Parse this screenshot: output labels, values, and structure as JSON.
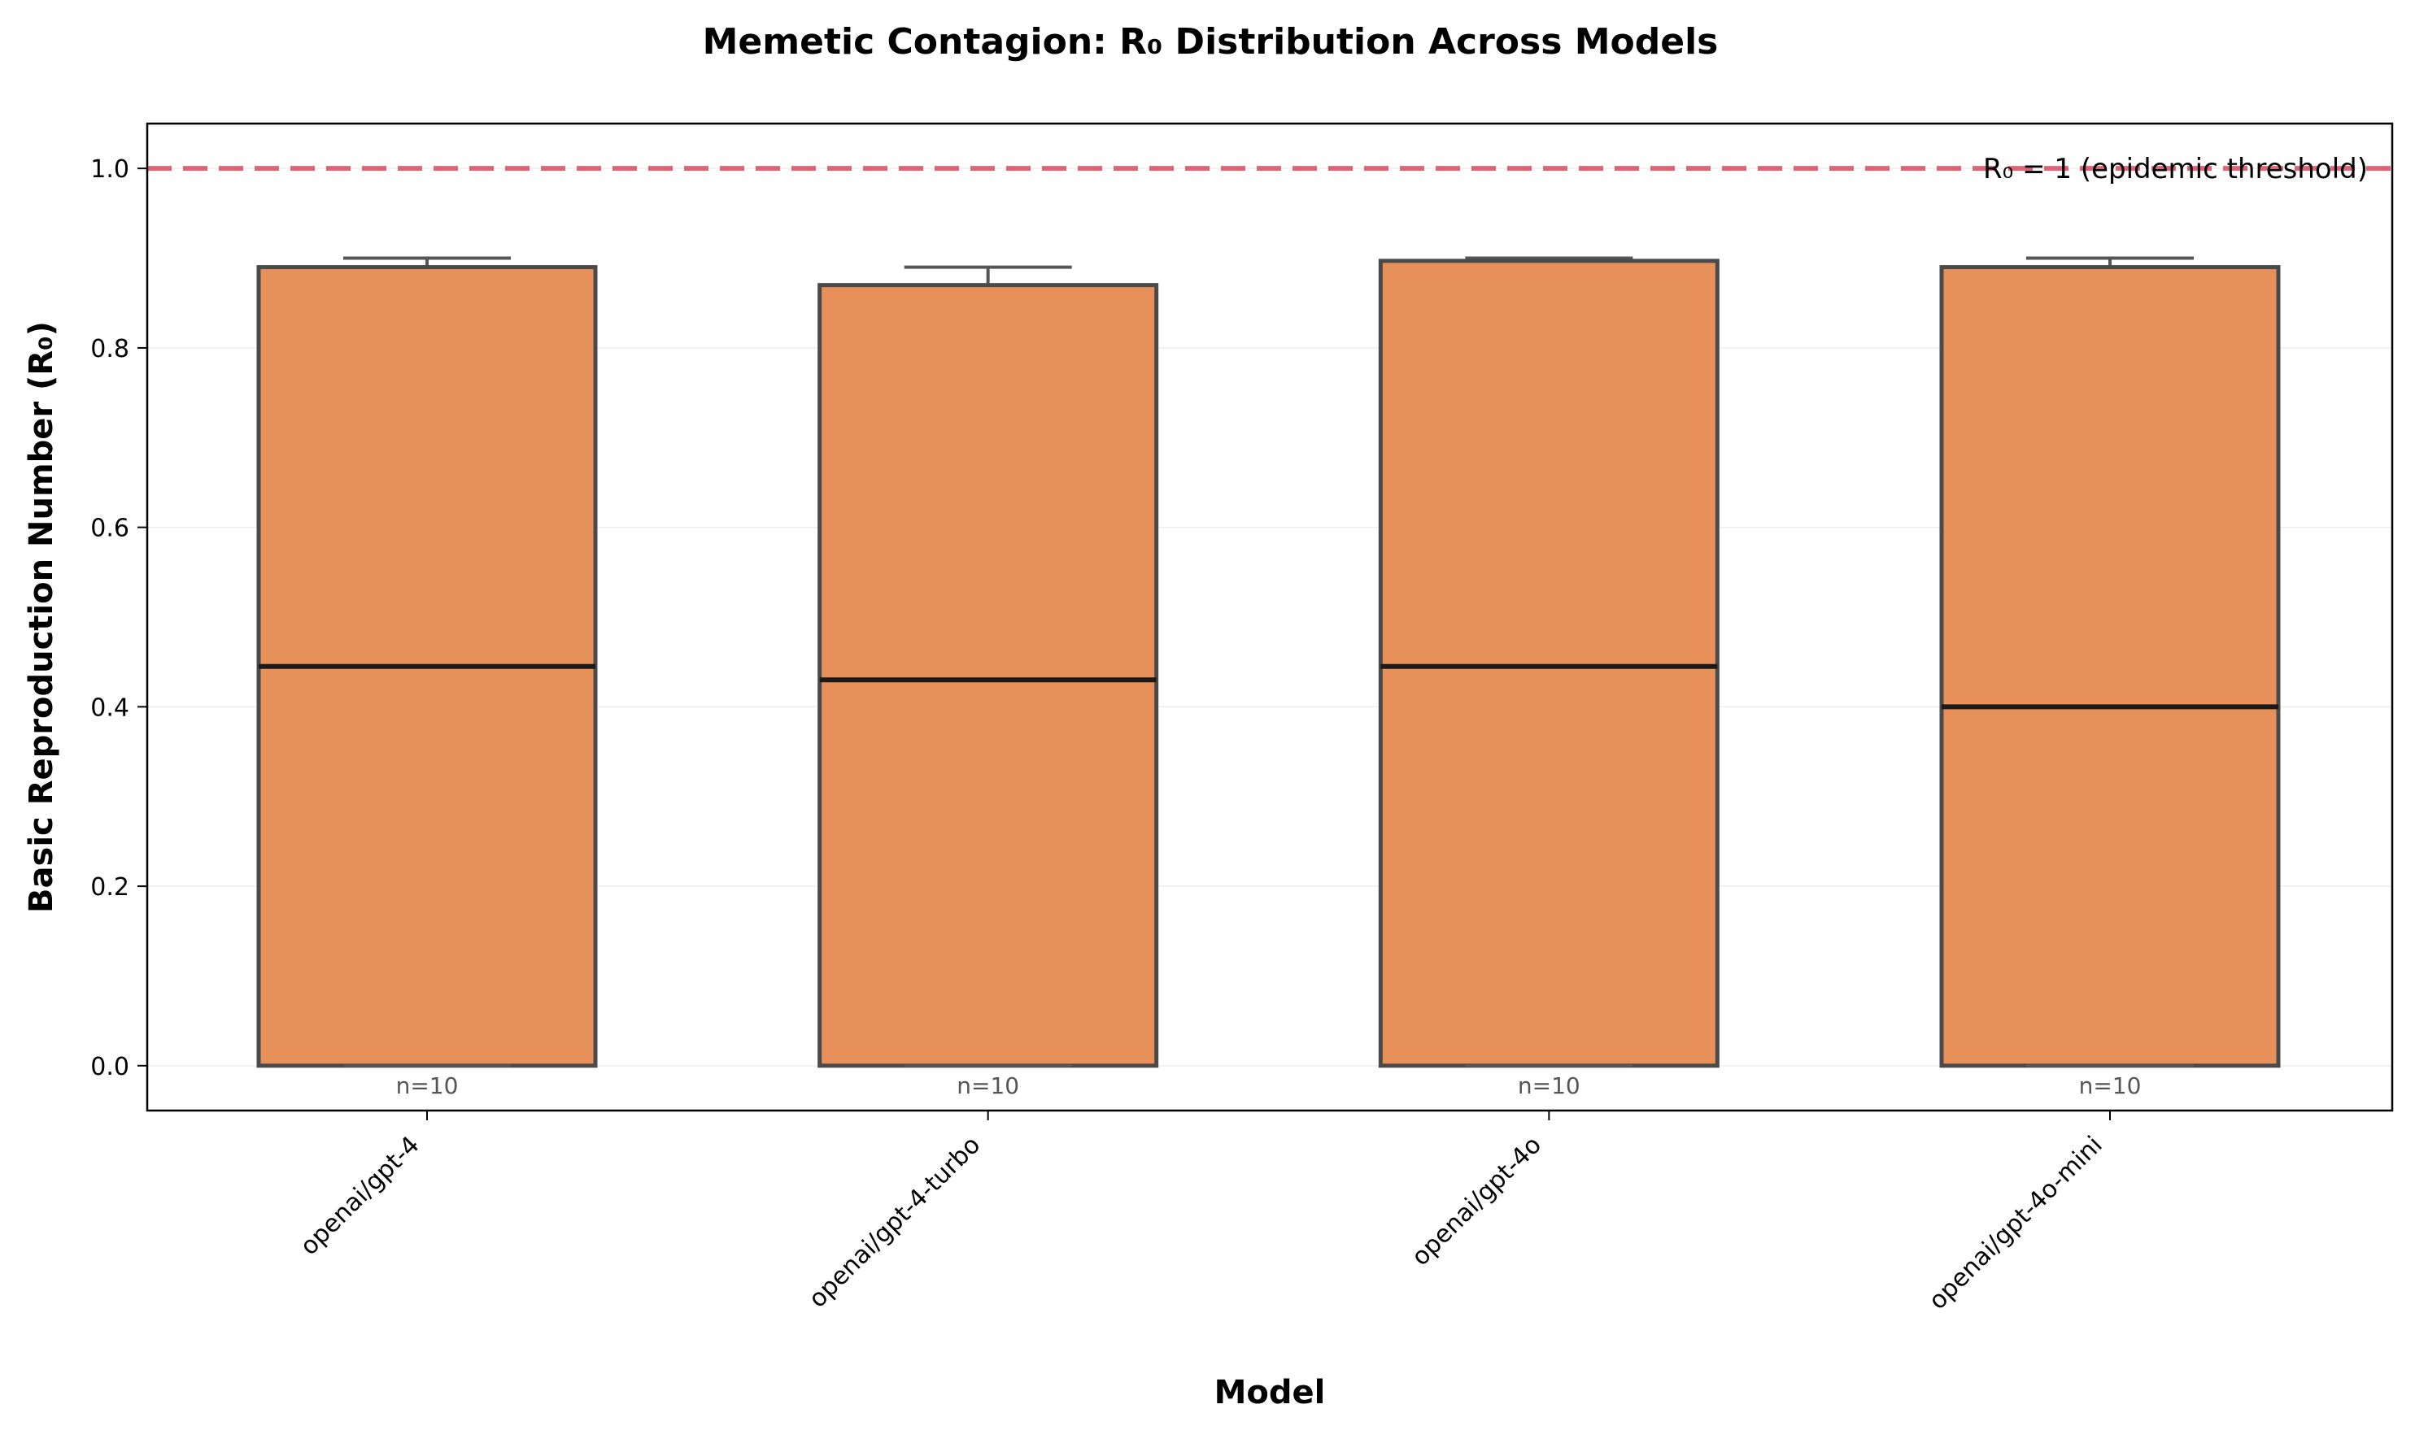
{
  "chart_data": {
    "type": "box",
    "title": "Memetic Contagion: R₀ Distribution Across Models",
    "xlabel": "Model",
    "ylabel": "Basic Reproduction Number (R₀)",
    "ylim": [
      -0.05,
      1.05
    ],
    "yticks": [
      0.0,
      0.2,
      0.4,
      0.6,
      0.8,
      1.0
    ],
    "ytick_labels": [
      "0.0",
      "0.2",
      "0.4",
      "0.6",
      "0.8",
      "1.0"
    ],
    "grid": true,
    "categories": [
      "openai/gpt-4",
      "openai/gpt-4-turbo",
      "openai/gpt-4o",
      "openai/gpt-4o-mini"
    ],
    "boxes": [
      {
        "category": "openai/gpt-4",
        "whisker_low": 0.0,
        "q1": 0.0,
        "median": 0.445,
        "q3": 0.89,
        "whisker_high": 0.9,
        "n_label": "n=10"
      },
      {
        "category": "openai/gpt-4-turbo",
        "whisker_low": 0.0,
        "q1": 0.0,
        "median": 0.43,
        "q3": 0.87,
        "whisker_high": 0.89,
        "n_label": "n=10"
      },
      {
        "category": "openai/gpt-4o",
        "whisker_low": 0.0,
        "q1": 0.0,
        "median": 0.445,
        "q3": 0.897,
        "whisker_high": 0.9,
        "n_label": "n=10"
      },
      {
        "category": "openai/gpt-4o-mini",
        "whisker_low": 0.0,
        "q1": 0.0,
        "median": 0.4,
        "q3": 0.89,
        "whisker_high": 0.9,
        "n_label": "n=10"
      }
    ],
    "reference_line": {
      "y": 1.0,
      "label": "R₀ = 1 (epidemic threshold)",
      "style": "dashed"
    },
    "legend_placement": "top-right",
    "colors": {
      "box_fill": "#e8905a",
      "box_edge": "#4a4a4a",
      "median": "#1a1a1a",
      "whisker": "#555555",
      "reference_line": "#d0364f",
      "n_label": "#555555",
      "grid": "#eeeeee"
    }
  }
}
